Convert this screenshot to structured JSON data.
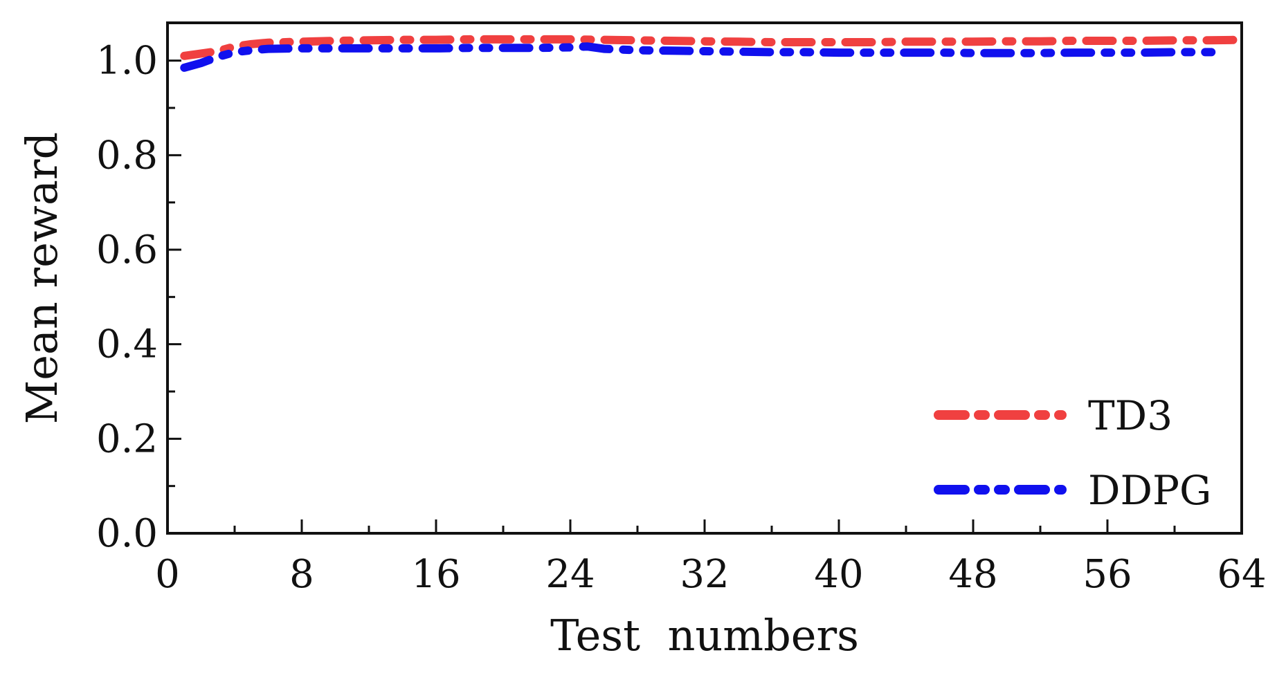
{
  "chart_data": {
    "type": "line",
    "title": "",
    "xlabel": "Test  numbers",
    "ylabel": "Mean reward",
    "xlim": [
      0,
      64
    ],
    "ylim": [
      0.0,
      1.08
    ],
    "x_ticks": [
      "0",
      "8",
      "16",
      "24",
      "32",
      "40",
      "48",
      "56",
      "64"
    ],
    "y_ticks": [
      "0.0",
      "0.2",
      "0.4",
      "0.6",
      "0.8",
      "1.0"
    ],
    "grid": false,
    "legend_position": "bottom-right",
    "series": [
      {
        "name": "TD3",
        "color": "#f04040",
        "line_style": "dash-dot",
        "x": [
          1,
          2,
          3,
          4,
          5,
          6,
          8,
          10,
          12,
          14,
          16,
          18,
          20,
          22,
          24,
          26,
          28,
          30,
          32,
          34,
          36,
          38,
          40,
          42,
          44,
          46,
          48,
          50,
          52,
          54,
          56,
          58,
          60,
          62,
          64
        ],
        "y": [
          1.01,
          1.015,
          1.02,
          1.03,
          1.035,
          1.038,
          1.04,
          1.042,
          1.043,
          1.044,
          1.044,
          1.045,
          1.045,
          1.045,
          1.045,
          1.044,
          1.043,
          1.042,
          1.041,
          1.04,
          1.039,
          1.039,
          1.039,
          1.039,
          1.04,
          1.04,
          1.04,
          1.041,
          1.041,
          1.042,
          1.042,
          1.042,
          1.043,
          1.043,
          1.044
        ]
      },
      {
        "name": "DDPG",
        "color": "#1010ee",
        "line_style": "dash-dot-dot",
        "x": [
          1,
          2,
          3,
          4,
          5,
          6,
          8,
          10,
          12,
          14,
          16,
          18,
          20,
          22,
          24,
          25,
          26,
          28,
          30,
          32,
          34,
          36,
          38,
          40,
          42,
          44,
          46,
          48,
          50,
          52,
          54,
          56,
          58,
          60,
          62,
          63
        ],
        "y": [
          0.985,
          0.995,
          1.008,
          1.018,
          1.022,
          1.025,
          1.026,
          1.026,
          1.026,
          1.026,
          1.026,
          1.027,
          1.027,
          1.027,
          1.028,
          1.03,
          1.025,
          1.022,
          1.021,
          1.02,
          1.019,
          1.018,
          1.018,
          1.017,
          1.017,
          1.017,
          1.017,
          1.016,
          1.016,
          1.016,
          1.017,
          1.017,
          1.017,
          1.018,
          1.018,
          1.018
        ]
      }
    ]
  }
}
